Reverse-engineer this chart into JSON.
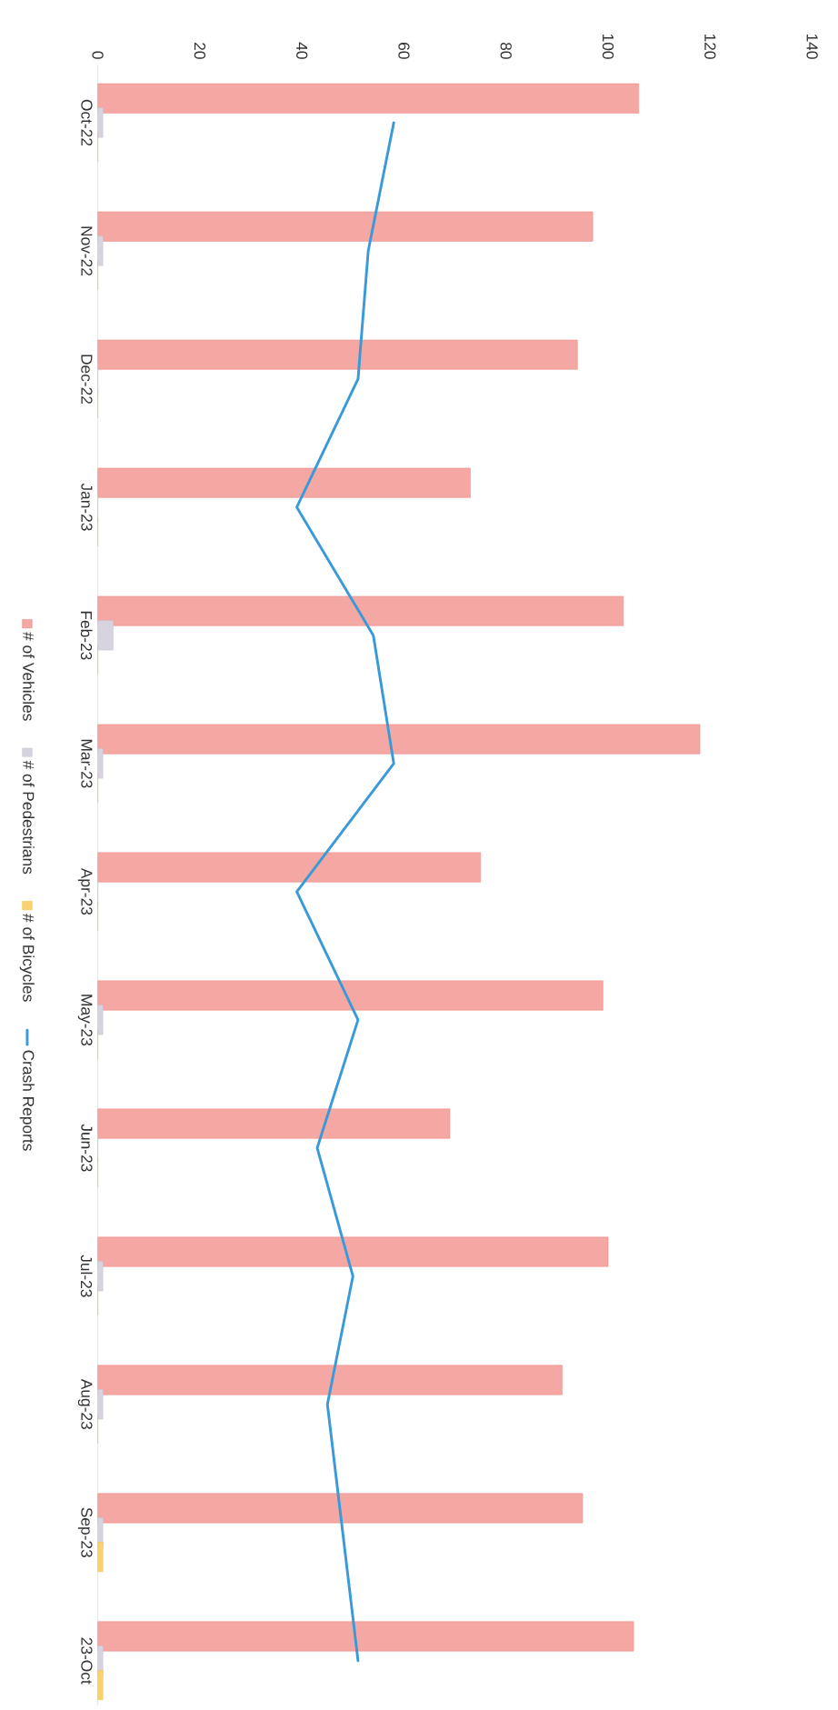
{
  "chart_data": {
    "type": "bar",
    "orientation": "horizontal",
    "categories": [
      "Oct-22",
      "Nov-22",
      "Dec-22",
      "Jan-23",
      "Feb-23",
      "Mar-23",
      "Apr-23",
      "May-23",
      "Jun-23",
      "Jul-23",
      "Aug-23",
      "Sep-23",
      "23-Oct"
    ],
    "series": [
      {
        "name": "# of Vehicles",
        "type": "bar",
        "color": "#f08a84",
        "values": [
          106,
          97,
          94,
          73,
          103,
          118,
          75,
          99,
          69,
          100,
          91,
          95,
          105
        ]
      },
      {
        "name": "# of Pedestrians",
        "type": "bar",
        "color": "#c9c6d6",
        "values": [
          1,
          1,
          0,
          0,
          3,
          1,
          0,
          1,
          0,
          1,
          1,
          1,
          1
        ]
      },
      {
        "name": "# of Bicycles",
        "type": "bar",
        "color": "#f5c242",
        "values": [
          0,
          0,
          0,
          0,
          0,
          0,
          0,
          0,
          0,
          0,
          0,
          1,
          1
        ]
      },
      {
        "name": "Crash Reports",
        "type": "line",
        "color": "#3a9ad9",
        "values": [
          58,
          53,
          51,
          39,
          54,
          58,
          39,
          51,
          43,
          50,
          45,
          48,
          51
        ]
      }
    ],
    "xlim": [
      0,
      140
    ],
    "xticks": [
      0,
      20,
      40,
      60,
      80,
      100,
      120,
      140
    ],
    "legend": "left"
  }
}
